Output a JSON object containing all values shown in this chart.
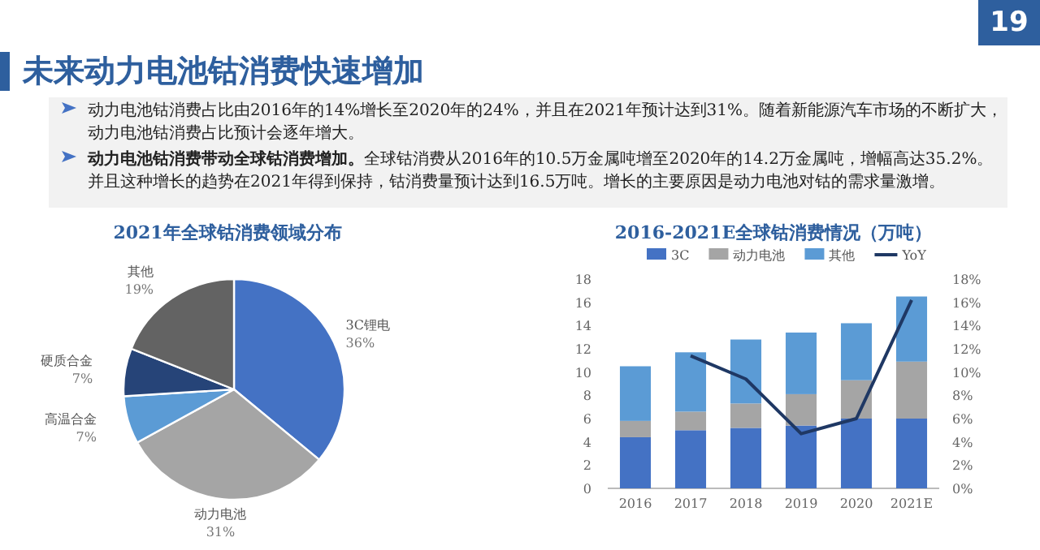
{
  "chart_data": [
    {
      "type": "other",
      "title": "未来动力电池钴消费快速增加",
      "annotations": [
        "动力电池钴消费占比由2016年的14%增长至2020年的24%，并且在2021年预计达到31%。随着新能源汽车市场的不断扩大，动力电池钴消费占比预计会逐年增大。",
        "动力电池钴消费带动全球钴消费增加。",
        "全球钴消费从2016年的10.5万金属吨增至2020年的14.2万金属吨，增幅高达35.2%。并且这种增长的趋势在2021年得到保持，钴消费量预计达到16.5万吨。增长的主要原因是动力电池对钴的需求量激增。",
        "19"
      ]
    },
    {
      "type": "pie",
      "title": "2021年全球钴消费领域分布",
      "categories": [
        "3C锂电",
        "动力电池",
        "高温合金",
        "硬质合金",
        "其他"
      ],
      "values": [
        36,
        31,
        7,
        7,
        19
      ],
      "value_labels": [
        "36%",
        "31%",
        "7%",
        "7%",
        "19%"
      ],
      "colors": [
        "#4472c4",
        "#a5a5a5",
        "#5b9bd5",
        "#264478",
        "#636363"
      ]
    },
    {
      "type": "bar",
      "stacked": true,
      "title": "2016-2021E全球钴消费情况（万吨）",
      "categories": [
        "2016",
        "2017",
        "2018",
        "2019",
        "2020",
        "2021E"
      ],
      "legend": "top",
      "ylim": [
        0,
        18
      ],
      "yticks": [
        0,
        2,
        4,
        6,
        8,
        10,
        12,
        14,
        16,
        18
      ],
      "y2lim": [
        0,
        18
      ],
      "y2ticks": [
        {
          "value": 0,
          "label": "0%"
        },
        {
          "value": 2,
          "label": "2%"
        },
        {
          "value": 4,
          "label": "4%"
        },
        {
          "value": 6,
          "label": "6%"
        },
        {
          "value": 8,
          "label": "8%"
        },
        {
          "value": 10,
          "label": "10%"
        },
        {
          "value": 12,
          "label": "12%"
        },
        {
          "value": 14,
          "label": "14%"
        },
        {
          "value": 16,
          "label": "16%"
        },
        {
          "value": 18,
          "label": "18%"
        }
      ],
      "series": [
        {
          "name": "3C",
          "color": "#4472c4",
          "values": [
            4.4,
            5.0,
            5.2,
            5.4,
            6.0,
            6.0
          ]
        },
        {
          "name": "动力电池",
          "color": "#a5a5a5",
          "values": [
            1.4,
            1.6,
            2.1,
            2.7,
            3.3,
            4.9
          ]
        },
        {
          "name": "其他",
          "color": "#5b9bd5",
          "values": [
            4.7,
            5.1,
            5.5,
            5.3,
            4.9,
            5.6
          ]
        },
        {
          "name": "YoY",
          "type": "line",
          "axis": "y2",
          "color": "#1f3864",
          "marker": "none",
          "values": [
            null,
            11.4,
            9.4,
            4.7,
            6.0,
            16.2
          ]
        }
      ]
    }
  ]
}
